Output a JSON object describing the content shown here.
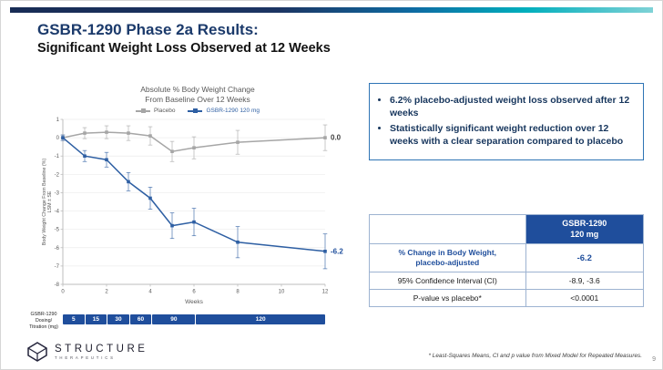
{
  "slide": {
    "title": "GSBR-1290 Phase 2a Results:",
    "subtitle": "Significant Weight Loss Observed at 12 Weeks",
    "footnote": "* Least-Squares Means, CI and p value from Mixed Model for Repeated Measures.",
    "page_number": "9"
  },
  "brand": {
    "name": "STRUCTURE",
    "sub": "THERAPEUTICS"
  },
  "colors": {
    "navy": "#1b3a6b",
    "table_blue": "#1f4e9c",
    "chart_blue": "#2e5fa3",
    "chart_gray": "#a6a6a6",
    "teal": "#00aebc"
  },
  "key_points": [
    "6.2% placebo-adjusted weight loss observed after 12 weeks",
    "Statistically significant weight reduction over 12 weeks with a clear separation compared to placebo"
  ],
  "chart_data": {
    "type": "line",
    "title": "Absolute % Body Weight Change\nFrom Baseline Over 12 Weeks",
    "xlabel": "Weeks",
    "ylabel": "Body Weight Change From Baseline (%)\nLSM ± SE",
    "xlim": [
      0,
      12
    ],
    "ylim": [
      -8,
      1
    ],
    "xticks": [
      0,
      2,
      4,
      6,
      8,
      10,
      12
    ],
    "yticks": [
      1,
      0,
      -1,
      -2,
      -3,
      -4,
      -5,
      -6,
      -7,
      -8
    ],
    "grid": true,
    "legend_position": "top",
    "x": [
      0,
      1,
      2,
      3,
      4,
      5,
      6,
      8,
      12
    ],
    "series": [
      {
        "name": "Placebo",
        "color": "#a6a6a6",
        "values": [
          0,
          0.25,
          0.3,
          0.25,
          0.1,
          -0.75,
          -0.55,
          -0.25,
          0.0
        ],
        "se": [
          0.15,
          0.3,
          0.35,
          0.4,
          0.5,
          0.55,
          0.6,
          0.65,
          0.7
        ],
        "end_label": "0.0",
        "end_label_color": "#404040"
      },
      {
        "name": "GSBR-1290 120 mg",
        "color": "#2e5fa3",
        "values": [
          0,
          -1.0,
          -1.2,
          -2.4,
          -3.3,
          -4.8,
          -4.6,
          -5.7,
          -6.2
        ],
        "se": [
          0.15,
          0.3,
          0.4,
          0.5,
          0.6,
          0.7,
          0.75,
          0.85,
          0.95
        ],
        "end_label": "-6.2",
        "end_label_color": "#1f4e9c"
      }
    ]
  },
  "dosing": {
    "label": "GSBR-1290\nDosing/\nTitration (mg)",
    "segments": [
      {
        "dose": "5",
        "weeks": 1
      },
      {
        "dose": "15",
        "weeks": 1
      },
      {
        "dose": "30",
        "weeks": 1
      },
      {
        "dose": "60",
        "weeks": 1
      },
      {
        "dose": "90",
        "weeks": 2
      },
      {
        "dose": "120",
        "weeks": 6
      }
    ]
  },
  "results_table": {
    "header_line1": "GSBR-1290",
    "header_line2": "120 mg",
    "rows": [
      {
        "label": "% Change in Body Weight,\nplacebo-adjusted",
        "value": "-6.2"
      },
      {
        "label": "95% Confidence Interval (CI)",
        "value": "-8.9, -3.6"
      },
      {
        "label": "P-value vs placebo*",
        "value": "<0.0001"
      }
    ]
  }
}
